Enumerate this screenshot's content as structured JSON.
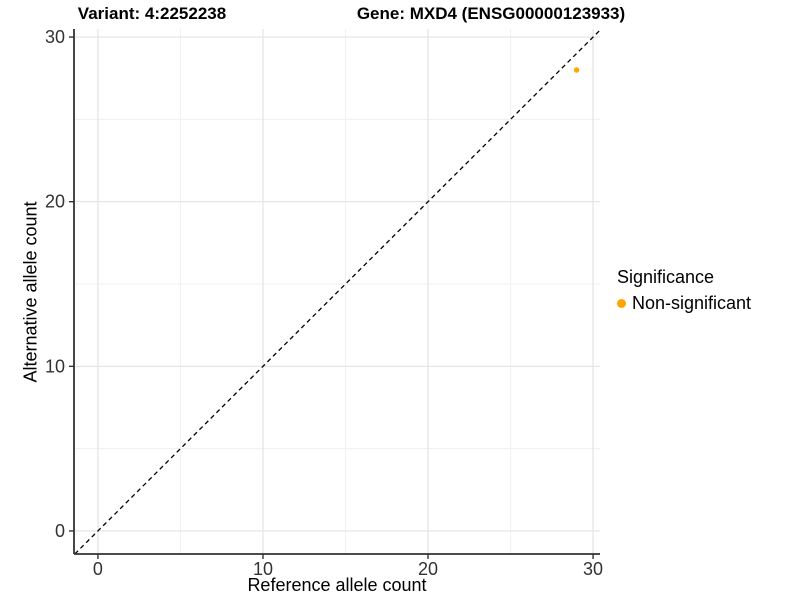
{
  "chart_data": {
    "type": "scatter",
    "title_left": "Variant: 4:2252238",
    "title_right": "Gene: MXD4 (ENSG00000123933)",
    "xlabel": "Reference allele count",
    "ylabel": "Alternative allele count",
    "xlim": [
      -1.45,
      30.42
    ],
    "ylim": [
      -1.4,
      30.49
    ],
    "x_ticks": [
      0,
      10,
      20,
      30
    ],
    "y_ticks": [
      0,
      10,
      20,
      30
    ],
    "x_minor_ticks": [
      5,
      15,
      25
    ],
    "y_minor_ticks": [
      5,
      15,
      25
    ],
    "grid": true,
    "identity_line": {
      "equation": "y = x",
      "style": "dashed",
      "color": "#000000"
    },
    "points": [
      {
        "x": 29,
        "y": 28,
        "series": "Non-significant",
        "color": "#FFA500"
      }
    ],
    "legend": {
      "position": "right",
      "title": "Significance",
      "items": [
        {
          "label": "Non-significant",
          "color": "#FFA500"
        }
      ]
    },
    "colors": {
      "point": "#FFA500",
      "grid_major": "#e3e3e3",
      "grid_minor": "#efefef",
      "axis_line": "#333333",
      "tick_label": "#333333"
    }
  }
}
